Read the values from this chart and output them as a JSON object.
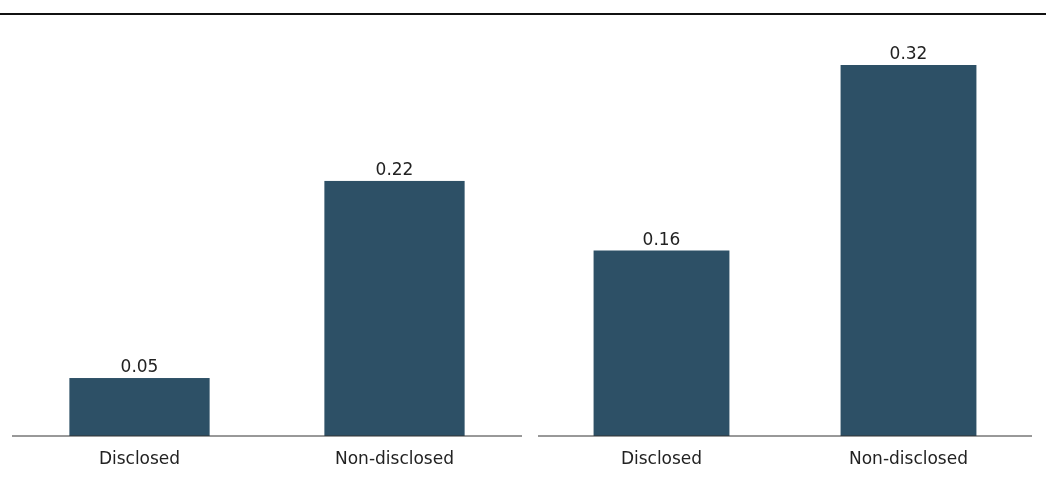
{
  "chart_data": [
    {
      "type": "bar",
      "categories": [
        "Disclosed",
        "Non-disclosed"
      ],
      "values": [
        0.05,
        0.22
      ],
      "color": "#2d5066",
      "data_labels": true
    },
    {
      "type": "bar",
      "categories": [
        "Disclosed",
        "Non-disclosed"
      ],
      "values": [
        0.16,
        0.32
      ],
      "color": "#2d5066",
      "data_labels": true
    }
  ]
}
